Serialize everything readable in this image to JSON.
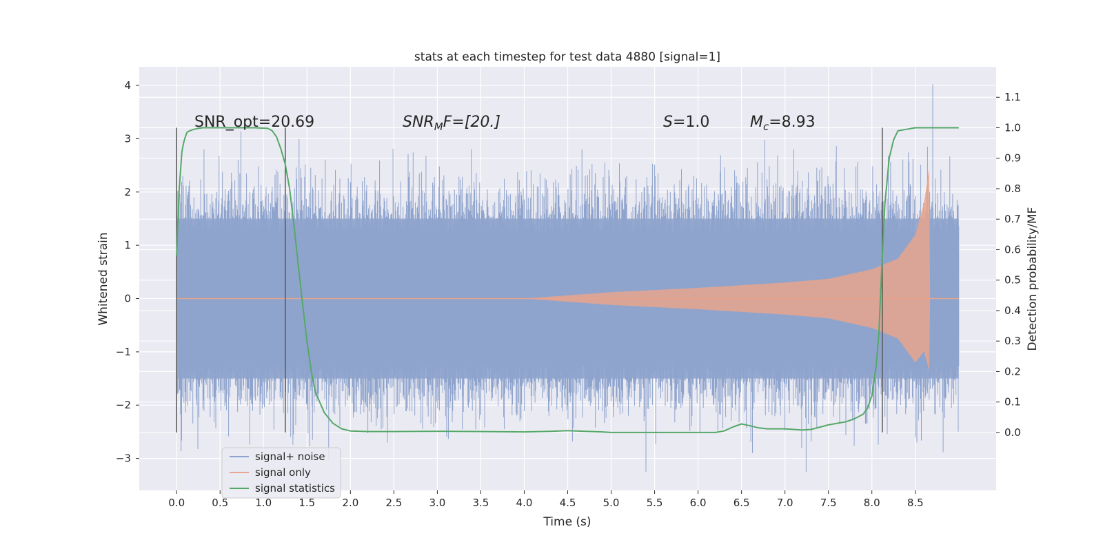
{
  "chart_data": {
    "type": "line",
    "title": "stats at each timestep for test data 4880 [signal=1]",
    "xlabel": "Time (s)",
    "ylabel": "Whitened strain",
    "ylabel_right": "Detection probability/MF",
    "xlim": [
      -0.43,
      9.43
    ],
    "ylim": [
      -3.6,
      4.35
    ],
    "ylim_right": [
      -0.19,
      1.2
    ],
    "x_ticks": [
      "0.0",
      "0.5",
      "1.0",
      "1.5",
      "2.0",
      "2.5",
      "3.0",
      "3.5",
      "4.0",
      "4.5",
      "5.0",
      "5.5",
      "6.0",
      "6.5",
      "7.0",
      "7.5",
      "8.0",
      "8.5"
    ],
    "x_tick_values": [
      0,
      0.5,
      1,
      1.5,
      2,
      2.5,
      3,
      3.5,
      4,
      4.5,
      5,
      5.5,
      6,
      6.5,
      7,
      7.5,
      8,
      8.5
    ],
    "y_ticks": [
      "−3",
      "−2",
      "−1",
      "0",
      "1",
      "2",
      "3",
      "4"
    ],
    "y_tick_values": [
      -3,
      -2,
      -1,
      0,
      1,
      2,
      3,
      4
    ],
    "y_right_ticks": [
      "0.0",
      "0.1",
      "0.2",
      "0.3",
      "0.4",
      "0.5",
      "0.6",
      "0.7",
      "0.8",
      "0.9",
      "1.0",
      "1.1"
    ],
    "y_right_tick_values": [
      0,
      0.1,
      0.2,
      0.3,
      0.4,
      0.5,
      0.6,
      0.7,
      0.8,
      0.9,
      1.0,
      1.1
    ],
    "grid": true,
    "legend_position": "lower-left",
    "annotations": {
      "snr_opt": "SNR_opt=20.69",
      "snr_mf_main": "SNR",
      "snr_mf_sub": "M",
      "snr_mf_rest": "F=[20.]",
      "s_main": "S",
      "s_rest": "=1.0",
      "mc_main": "M",
      "mc_sub": "c",
      "mc_rest": "=8.93"
    },
    "vertical_lines_x": [
      0.0,
      1.25,
      8.12
    ],
    "series": [
      {
        "name": "signal+ noise",
        "axis": "left",
        "color": "#8fa4cd",
        "x_range": [
          0,
          9.0
        ],
        "typical_band": [
          -1.5,
          1.5
        ],
        "max": 4.02,
        "min": -3.25
      },
      {
        "name": "signal only",
        "axis": "left",
        "color": "#e8a48c",
        "envelope_x": [
          0,
          4.0,
          5.0,
          6.0,
          7.0,
          7.5,
          8.0,
          8.3,
          8.5,
          8.6,
          8.66,
          8.67,
          9.0
        ],
        "envelope_y": [
          0.0,
          0.0,
          0.12,
          0.2,
          0.3,
          0.37,
          0.55,
          0.75,
          1.2,
          1.8,
          2.45,
          0.0,
          0.0
        ]
      },
      {
        "name": "signal statistics",
        "axis": "right",
        "color": "#55a868",
        "x": [
          0.0,
          0.03,
          0.06,
          0.08,
          0.1,
          0.12,
          0.15,
          0.2,
          0.25,
          0.3,
          0.5,
          0.9,
          1.05,
          1.1,
          1.15,
          1.2,
          1.25,
          1.3,
          1.35,
          1.4,
          1.45,
          1.5,
          1.55,
          1.6,
          1.7,
          1.8,
          1.9,
          2.0,
          2.2,
          2.5,
          3.0,
          3.5,
          4.0,
          4.3,
          4.5,
          4.7,
          4.9,
          5.0,
          5.5,
          6.0,
          6.2,
          6.3,
          6.4,
          6.5,
          6.6,
          6.7,
          6.8,
          7.0,
          7.2,
          7.3,
          7.5,
          7.7,
          7.8,
          7.9,
          7.95,
          8.0,
          8.05,
          8.08,
          8.1,
          8.12,
          8.15,
          8.2,
          8.25,
          8.3,
          8.4,
          8.5,
          8.6,
          9.0
        ],
        "y": [
          0.58,
          0.8,
          0.92,
          0.95,
          0.97,
          0.985,
          0.99,
          0.995,
          0.998,
          1.0,
          1.0,
          1.0,
          0.998,
          0.99,
          0.97,
          0.93,
          0.88,
          0.8,
          0.68,
          0.55,
          0.42,
          0.3,
          0.2,
          0.13,
          0.065,
          0.03,
          0.012,
          0.005,
          0.003,
          0.003,
          0.004,
          0.003,
          0.002,
          0.004,
          0.006,
          0.004,
          0.002,
          0.0,
          0.0,
          0.0,
          0.0,
          0.005,
          0.018,
          0.028,
          0.022,
          0.015,
          0.012,
          0.012,
          0.008,
          0.01,
          0.025,
          0.035,
          0.045,
          0.06,
          0.08,
          0.12,
          0.22,
          0.32,
          0.45,
          0.58,
          0.75,
          0.9,
          0.96,
          0.99,
          0.995,
          1.0,
          1.0,
          1.0
        ]
      }
    ]
  }
}
